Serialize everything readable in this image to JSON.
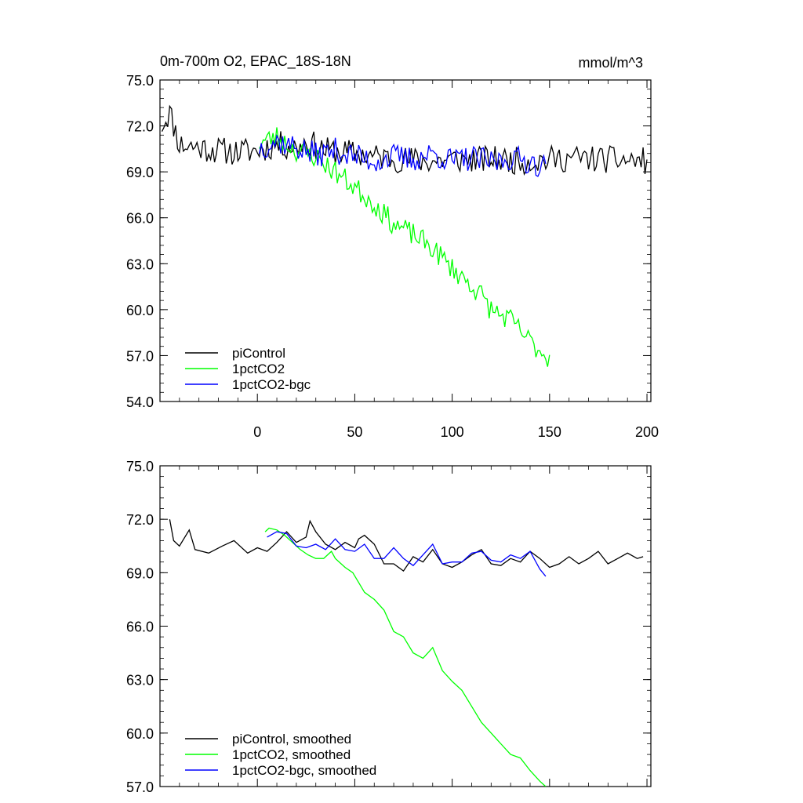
{
  "figure": {
    "title": "0m-700m O2, EPAC_18S-18N",
    "units": "mmol/m^3"
  },
  "chart_data": [
    {
      "type": "line",
      "panel": "top",
      "xlim": [
        -50,
        202
      ],
      "ylim": [
        54,
        75
      ],
      "y_ticks": [
        54,
        57,
        60,
        63,
        66,
        69,
        72,
        75
      ],
      "y_tick_labels": [
        "54.0",
        "57.0",
        "60.0",
        "63.0",
        "66.0",
        "69.0",
        "72.0",
        "75.0"
      ],
      "x_ticks": [
        0,
        50,
        100,
        150,
        200
      ],
      "x_tick_labels": [
        "0",
        "50",
        "100",
        "150",
        "200"
      ],
      "legend_position": "bottom-left",
      "series": [
        {
          "name": "piControl",
          "color": "#000000",
          "anchors": [
            [
              -49,
              72.1
            ],
            [
              -45,
              72.9
            ],
            [
              -40,
              70.8
            ],
            [
              -30,
              70.6
            ],
            [
              -20,
              70.4
            ],
            [
              -10,
              70.3
            ],
            [
              0,
              70.4
            ],
            [
              10,
              70.8
            ],
            [
              20,
              70.6
            ],
            [
              25,
              71.0
            ],
            [
              35,
              70.4
            ],
            [
              50,
              70.2
            ],
            [
              60,
              70.0
            ],
            [
              75,
              69.8
            ],
            [
              90,
              69.7
            ],
            [
              100,
              69.8
            ],
            [
              120,
              69.8
            ],
            [
              140,
              69.7
            ],
            [
              160,
              69.9
            ],
            [
              180,
              69.8
            ],
            [
              200,
              69.7
            ]
          ],
          "noise": 0.9,
          "seed": 11
        },
        {
          "name": "1pctCO2",
          "color": "#00ff00",
          "anchors": [
            [
              1,
              70.9
            ],
            [
              10,
              71.3
            ],
            [
              20,
              70.4
            ],
            [
              30,
              70.0
            ],
            [
              40,
              69.0
            ],
            [
              50,
              68.0
            ],
            [
              60,
              66.9
            ],
            [
              70,
              65.6
            ],
            [
              80,
              64.9
            ],
            [
              90,
              64.0
            ],
            [
              100,
              62.7
            ],
            [
              110,
              61.6
            ],
            [
              115,
              60.9
            ],
            [
              120,
              60.0
            ],
            [
              130,
              59.3
            ],
            [
              140,
              57.9
            ],
            [
              150,
              56.8
            ]
          ],
          "noise": 0.75,
          "seed": 23
        },
        {
          "name": "1pctCO2-bgc",
          "color": "#0000ff",
          "anchors": [
            [
              1,
              70.6
            ],
            [
              10,
              71.0
            ],
            [
              20,
              70.6
            ],
            [
              30,
              70.1
            ],
            [
              40,
              70.4
            ],
            [
              50,
              70.0
            ],
            [
              60,
              69.7
            ],
            [
              70,
              70.0
            ],
            [
              80,
              69.8
            ],
            [
              90,
              70.2
            ],
            [
              100,
              69.7
            ],
            [
              110,
              69.9
            ],
            [
              120,
              69.6
            ],
            [
              130,
              69.9
            ],
            [
              140,
              69.7
            ],
            [
              148,
              69.3
            ]
          ],
          "noise": 0.85,
          "seed": 37
        }
      ]
    },
    {
      "type": "line",
      "panel": "bottom",
      "xlim": [
        -50,
        202
      ],
      "ylim": [
        57,
        75
      ],
      "y_ticks": [
        57,
        60,
        63,
        66,
        69,
        72,
        75
      ],
      "y_tick_labels": [
        "57.0",
        "60.0",
        "63.0",
        "66.0",
        "69.0",
        "72.0",
        "75.0"
      ],
      "x_ticks": [
        0,
        50,
        100,
        150,
        200
      ],
      "legend_position": "bottom-left",
      "series": [
        {
          "name": "piControl, smoothed",
          "color": "#000000",
          "points": [
            [
              -45,
              72.0
            ],
            [
              -43,
              70.8
            ],
            [
              -40,
              70.5
            ],
            [
              -35,
              71.4
            ],
            [
              -32,
              70.3
            ],
            [
              -25,
              70.1
            ],
            [
              -18,
              70.5
            ],
            [
              -12,
              70.8
            ],
            [
              -5,
              70.1
            ],
            [
              0,
              70.4
            ],
            [
              5,
              70.2
            ],
            [
              10,
              70.7
            ],
            [
              15,
              71.3
            ],
            [
              20,
              70.7
            ],
            [
              25,
              71.0
            ],
            [
              27,
              71.9
            ],
            [
              30,
              71.3
            ],
            [
              35,
              70.6
            ],
            [
              40,
              70.3
            ],
            [
              45,
              70.7
            ],
            [
              50,
              70.4
            ],
            [
              52,
              70.9
            ],
            [
              55,
              71.1
            ],
            [
              60,
              70.6
            ],
            [
              65,
              69.5
            ],
            [
              70,
              69.5
            ],
            [
              75,
              69.1
            ],
            [
              80,
              69.9
            ],
            [
              85,
              69.6
            ],
            [
              90,
              70.3
            ],
            [
              95,
              69.5
            ],
            [
              100,
              69.3
            ],
            [
              105,
              69.6
            ],
            [
              110,
              70.0
            ],
            [
              115,
              70.3
            ],
            [
              120,
              69.5
            ],
            [
              125,
              69.4
            ],
            [
              130,
              69.8
            ],
            [
              135,
              69.6
            ],
            [
              140,
              70.2
            ],
            [
              145,
              69.8
            ],
            [
              150,
              69.3
            ],
            [
              155,
              69.5
            ],
            [
              160,
              69.9
            ],
            [
              165,
              69.5
            ],
            [
              170,
              69.8
            ],
            [
              175,
              70.2
            ],
            [
              180,
              69.5
            ],
            [
              185,
              69.8
            ],
            [
              190,
              70.1
            ],
            [
              195,
              69.8
            ],
            [
              198,
              69.9
            ]
          ]
        },
        {
          "name": "1pctCO2, smoothed",
          "color": "#00ff00",
          "points": [
            [
              4,
              71.3
            ],
            [
              6,
              71.5
            ],
            [
              10,
              71.4
            ],
            [
              14,
              71.1
            ],
            [
              18,
              70.7
            ],
            [
              22,
              70.3
            ],
            [
              26,
              70.0
            ],
            [
              30,
              69.8
            ],
            [
              34,
              69.8
            ],
            [
              38,
              70.2
            ],
            [
              40,
              69.8
            ],
            [
              45,
              69.3
            ],
            [
              49,
              69.0
            ],
            [
              55,
              67.9
            ],
            [
              60,
              67.5
            ],
            [
              65,
              66.9
            ],
            [
              70,
              65.7
            ],
            [
              75,
              65.4
            ],
            [
              80,
              64.5
            ],
            [
              85,
              64.2
            ],
            [
              90,
              64.8
            ],
            [
              95,
              63.5
            ],
            [
              100,
              62.9
            ],
            [
              105,
              62.4
            ],
            [
              110,
              61.5
            ],
            [
              115,
              60.6
            ],
            [
              120,
              60.0
            ],
            [
              125,
              59.4
            ],
            [
              130,
              58.8
            ],
            [
              135,
              58.6
            ],
            [
              140,
              57.9
            ],
            [
              145,
              57.3
            ],
            [
              148,
              57.0
            ]
          ]
        },
        {
          "name": "1pctCO2-bgc, smoothed",
          "color": "#0000ff",
          "points": [
            [
              5,
              71.0
            ],
            [
              10,
              71.3
            ],
            [
              15,
              71.2
            ],
            [
              20,
              70.5
            ],
            [
              25,
              70.4
            ],
            [
              30,
              70.6
            ],
            [
              35,
              70.3
            ],
            [
              40,
              70.9
            ],
            [
              45,
              70.3
            ],
            [
              50,
              70.2
            ],
            [
              55,
              70.6
            ],
            [
              60,
              69.8
            ],
            [
              65,
              69.8
            ],
            [
              70,
              70.4
            ],
            [
              75,
              69.8
            ],
            [
              80,
              69.4
            ],
            [
              85,
              70.0
            ],
            [
              90,
              70.6
            ],
            [
              95,
              69.5
            ],
            [
              100,
              69.6
            ],
            [
              105,
              69.6
            ],
            [
              110,
              70.1
            ],
            [
              115,
              70.2
            ],
            [
              120,
              69.7
            ],
            [
              125,
              69.6
            ],
            [
              130,
              70.0
            ],
            [
              135,
              69.8
            ],
            [
              140,
              70.2
            ],
            [
              145,
              69.2
            ],
            [
              148,
              68.8
            ]
          ]
        }
      ]
    }
  ]
}
